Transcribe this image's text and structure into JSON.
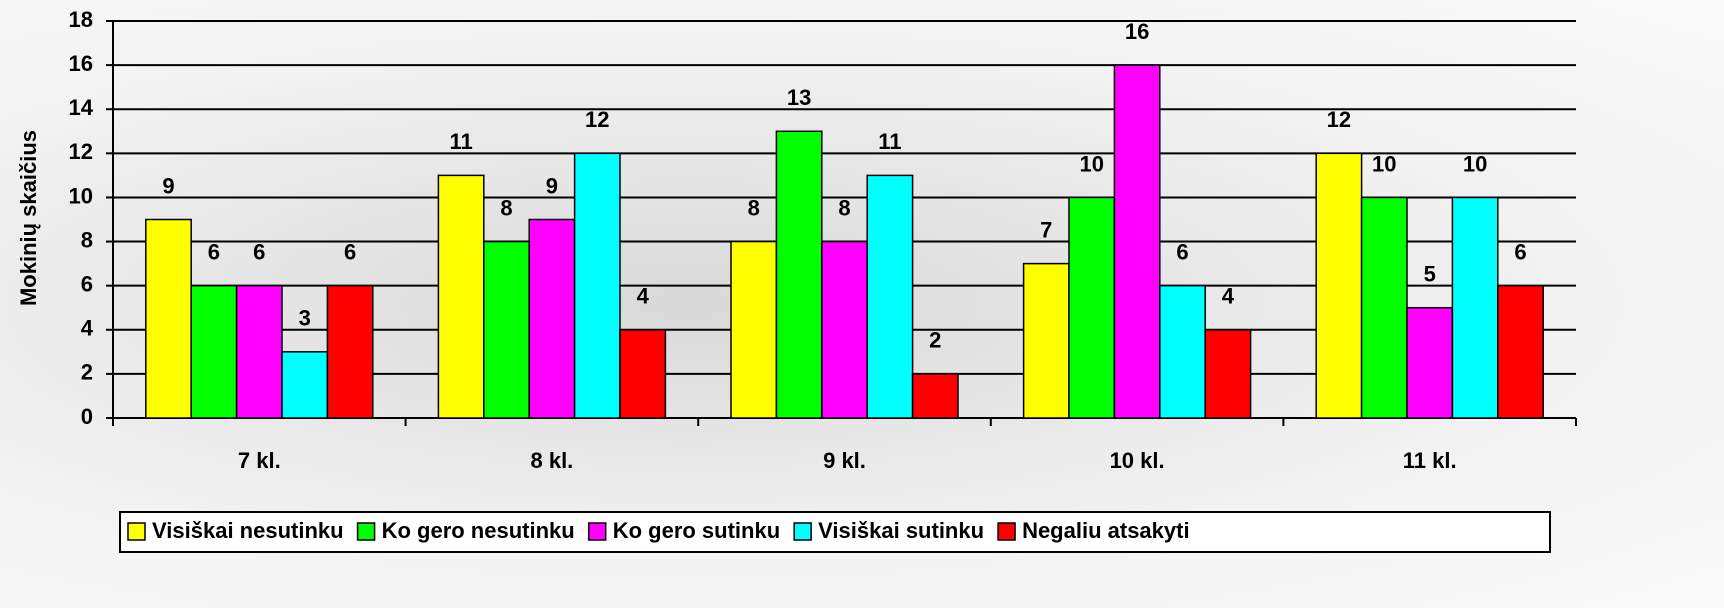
{
  "chart_data": {
    "type": "bar",
    "y_label": "Mokinių skaičius",
    "categories": [
      "7 kl.",
      "8 kl.",
      "9 kl.",
      "10 kl.",
      "11 kl."
    ],
    "series": [
      {
        "name": "Visiškai nesutinku",
        "color": "#ffff00",
        "values": [
          9,
          11,
          8,
          7,
          12
        ]
      },
      {
        "name": "Ko gero nesutinku",
        "color": "#00ff00",
        "values": [
          6,
          8,
          13,
          10,
          10
        ]
      },
      {
        "name": "Ko gero sutinku",
        "color": "#ff00ff",
        "values": [
          6,
          9,
          8,
          16,
          5
        ]
      },
      {
        "name": "Visiškai sutinku",
        "color": "#00ffff",
        "values": [
          3,
          12,
          11,
          6,
          10
        ]
      },
      {
        "name": "Negaliu atsakyti",
        "color": "#ff0000",
        "values": [
          6,
          4,
          2,
          4,
          6
        ]
      }
    ],
    "ylim": [
      0,
      18
    ],
    "yticks": [
      0,
      2,
      4,
      6,
      8,
      10,
      12,
      14,
      16,
      18
    ],
    "grid": true,
    "legend": "bottom"
  }
}
